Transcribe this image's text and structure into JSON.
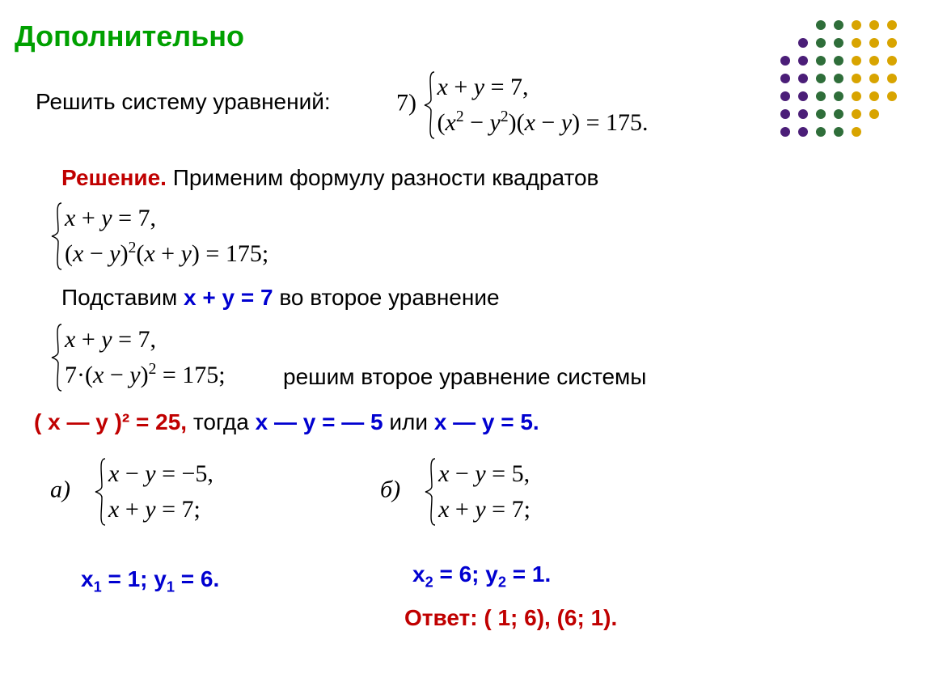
{
  "title": "Дополнительно",
  "problem_label": "Решить систему уравнений:",
  "problem_number": "7)",
  "sys0_eq1": "x + y = 7,",
  "sys0_eq2": "(x² − y²)(x − y) = 175.",
  "solution_label": "Решение.",
  "solution_text": "  Применим формулу разности квадратов",
  "sys1_eq1": "x + y = 7,",
  "sys1_eq2": "(x − y)²(x + y) = 175;",
  "subst_pre": "Подставим   ",
  "subst_eq": "x + y = 7",
  "subst_post": " во  второе  уравнение",
  "sys2_eq1": "x + y = 7,",
  "sys2_eq2": "7·(x − y)² = 175;",
  "solve2_text": "решим  второе  уравнение системы",
  "sq_result": "( x — y )² = 25,",
  "sq_then": "  тогда  ",
  "sq_case1": "x — y = — 5",
  "sq_or": "  или  ",
  "sq_case2": "x — y = 5.",
  "case_a_label": "а)",
  "case_a_eq1": "x − y = −5,",
  "case_a_eq2": "x + y = 7;",
  "case_b_label": "б)",
  "case_b_eq1": "x − y = 5,",
  "case_b_eq2": "x + y = 7;",
  "sol_a": "x₁ = 1; y₁ = 6.",
  "sol_b": "x₂ = 6; y₂ = 1.",
  "answer_label": "Ответ:  ( 1; 6), (6; 1).",
  "dot_grid": {
    "rows": 7,
    "cols": 7,
    "spacing": 22,
    "radius": 6,
    "col_colors": [
      "#4b1e78",
      "#4b1e78",
      "#2f6e3a",
      "#2f6e3a",
      "#d8a400",
      "#d8a400",
      "#d8a400"
    ],
    "hidden": [
      [
        0,
        0
      ],
      [
        0,
        1
      ],
      [
        1,
        0
      ],
      [
        5,
        6
      ],
      [
        6,
        5
      ],
      [
        6,
        6
      ]
    ]
  },
  "colors": {
    "title": "#00a000",
    "red": "#c00000",
    "blue": "#0000d0",
    "text": "#000000",
    "bg": "#ffffff"
  },
  "fontsize_title": 36,
  "fontsize_body": 28,
  "fontsize_math": 30
}
